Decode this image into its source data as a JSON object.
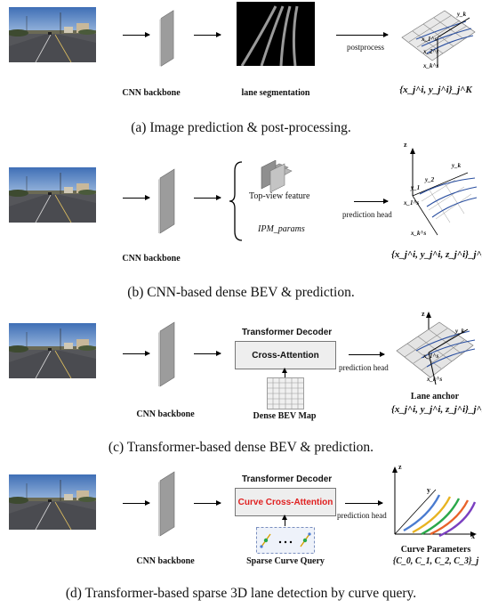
{
  "panel_a": {
    "backbone_label": "CNN backbone",
    "seg_label": "lane segmentation",
    "arrow_label": "postprocess",
    "output_math": "{x_j^i, y_j^i}_j^K",
    "caption": "(a) Image prediction & post-processing.",
    "axis_labels": [
      "y_k",
      "x_1^s",
      "x_2^s",
      "x_k^s"
    ]
  },
  "panel_b": {
    "backbone_label": "CNN backbone",
    "feature_label": "Top-view feature",
    "ipm_label": "IPM_params",
    "arrow_label": "prediction head",
    "output_math": "{x_j^i, y_j^i, z_j^i}_j^K",
    "caption": "(b) CNN-based dense BEV & prediction.",
    "axis_labels": [
      "z",
      "y_k",
      "y_2",
      "y_1",
      "x_1^s",
      "x_k^s"
    ]
  },
  "panel_c": {
    "backbone_label": "CNN backbone",
    "decoder_title": "Transformer Decoder",
    "attention_label": "Cross-Attention",
    "bev_map_label": "Dense BEV Map",
    "arrow_label": "prediction head",
    "anchor_label": "Lane anchor",
    "output_math": "{x_j^i, y_j^i, z_j^i}_j^K",
    "caption": "(c) Transformer-based dense BEV & prediction.",
    "axis_labels": [
      "z",
      "y_k",
      "x_1^s",
      "x_k^s"
    ]
  },
  "panel_d": {
    "backbone_label": "CNN backbone",
    "decoder_title": "Transformer Decoder",
    "attention_label": "Curve Cross-Attention",
    "query_label": "Sparse Curve Query",
    "arrow_label": "prediction head",
    "params_label": "Curve Parameters",
    "params_math": "{C_0, C_1, C_2, C_3}_j",
    "caption": "(d) Transformer-based sparse 3D lane detection by curve query.",
    "axis_labels": [
      "z",
      "y",
      "x"
    ],
    "curve_colors": [
      "#4a7bd0",
      "#e8b321",
      "#2aa84a",
      "#e8632a",
      "#7a3fc0"
    ]
  },
  "colors": {
    "attention_red": "#e02020"
  }
}
